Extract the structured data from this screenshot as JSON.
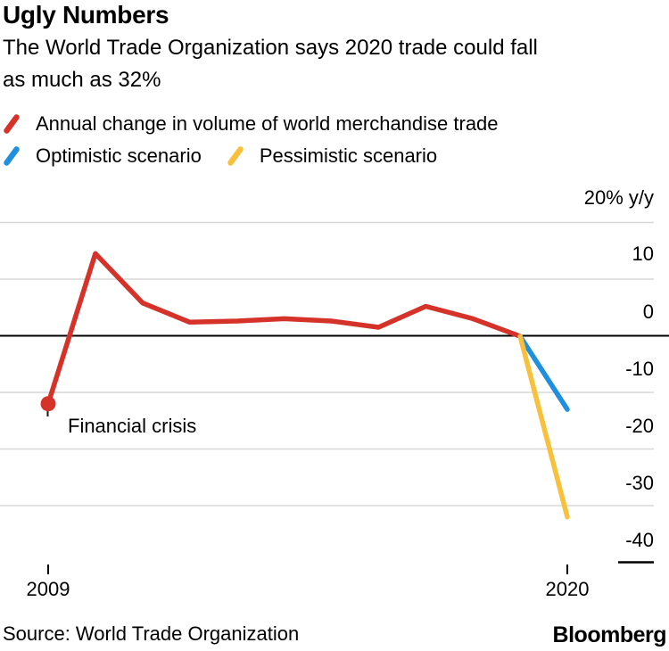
{
  "header": {
    "title": "Ugly Numbers",
    "subtitle_lines": [
      "The World Trade Organization says 2020 trade could fall",
      "as much as 32%"
    ]
  },
  "chart_data": {
    "type": "line",
    "title": "Ugly Numbers",
    "grid": "horizontal",
    "legend_position": "top",
    "ylim": [
      -40,
      20
    ],
    "y_unit": "% y/y",
    "y_ticks": [
      "20% y/y",
      "10",
      "0",
      "-10",
      "-20",
      "-30",
      "-40"
    ],
    "y_tick_values": [
      20,
      10,
      0,
      -10,
      -20,
      -30,
      -40
    ],
    "x_tick_labels": [
      "2009",
      "2020"
    ],
    "x_tick_values": [
      2009,
      2020
    ],
    "x": [
      2009,
      2010,
      2011,
      2012,
      2013,
      2014,
      2015,
      2016,
      2017,
      2018,
      2019
    ],
    "series": [
      {
        "name": "Annual change in volume of world merchandise trade",
        "color": "#d5332a",
        "values": [
          -12,
          14.5,
          5.8,
          2.4,
          2.6,
          3.0,
          2.6,
          1.5,
          5.2,
          3.0,
          -0.1
        ]
      },
      {
        "name": "Optimistic scenario",
        "color": "#1f8fe0",
        "x": [
          2019,
          2020
        ],
        "values": [
          -0.1,
          -13
        ]
      },
      {
        "name": "Pessimistic scenario",
        "color": "#f9c13b",
        "x": [
          2019,
          2020
        ],
        "values": [
          -0.1,
          -32
        ]
      }
    ],
    "annotation": "Financial crisis",
    "zero_line_color": "#000000",
    "gridline_color": "#d8d8d8"
  },
  "footer": {
    "source": "Source: World Trade Organization",
    "logo": "Bloomberg"
  }
}
